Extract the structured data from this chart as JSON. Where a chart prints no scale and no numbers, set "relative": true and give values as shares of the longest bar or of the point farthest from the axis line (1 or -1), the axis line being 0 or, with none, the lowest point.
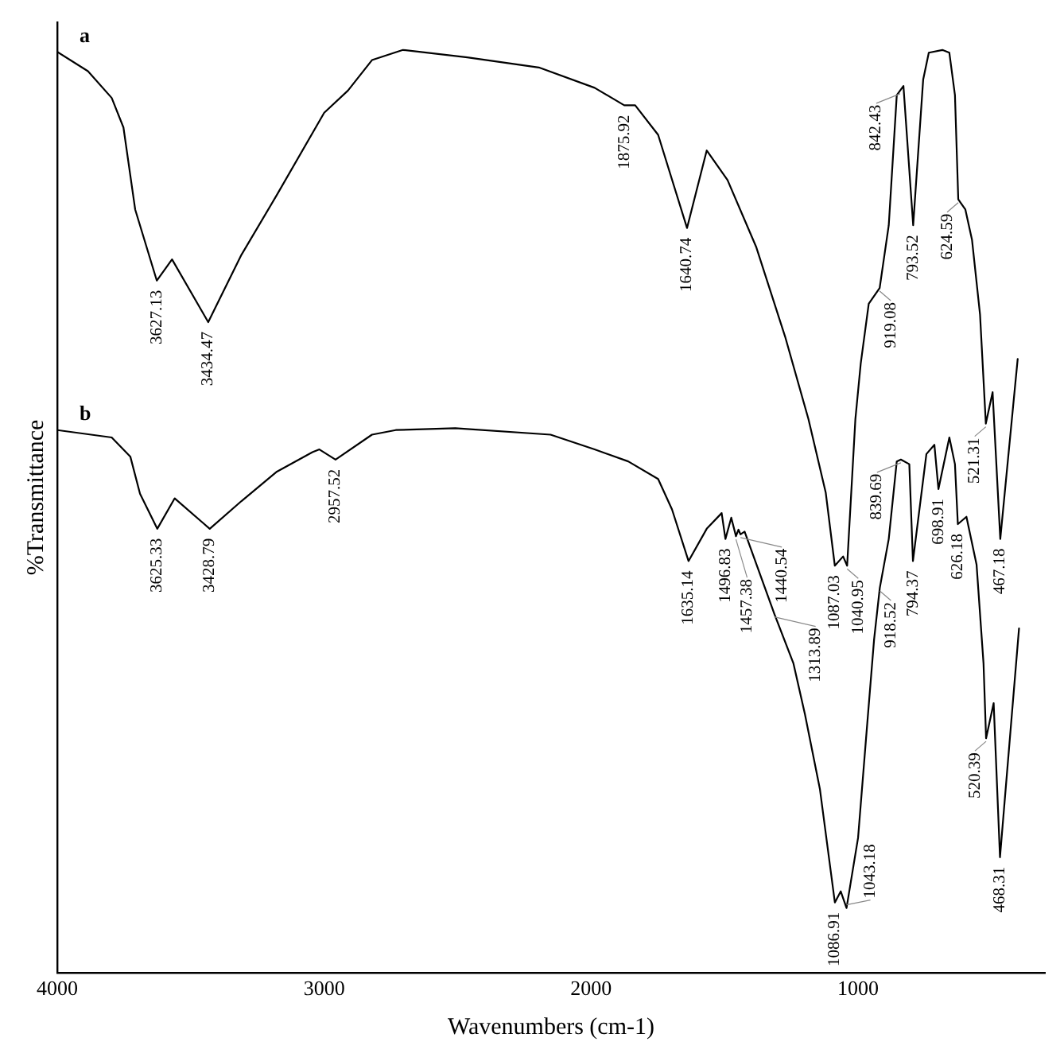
{
  "chart_data": {
    "type": "line",
    "xlabel": "Wavenumbers (cm-1)",
    "ylabel": "%Transmittance",
    "relative": true,
    "xlim": [
      4000,
      300
    ],
    "xticks": [
      4000,
      3000,
      2000,
      1000
    ],
    "grid": false,
    "legend": false,
    "marker": "none",
    "line_style": "solid",
    "series": [
      {
        "name": "a",
        "color": "#000000",
        "x": [
          4000,
          3885,
          3796,
          3752,
          3708,
          3627.13,
          3570,
          3434.47,
          3310,
          3177,
          3000,
          2911,
          2821,
          2705,
          2464,
          2196,
          1987,
          1875.92,
          1835,
          1749,
          1640.74,
          1567,
          1489,
          1381,
          1273,
          1186,
          1121,
          1087.03,
          1056,
          1040.95,
          1010,
          990,
          960,
          919.08,
          885,
          855,
          842.43,
          830,
          793.52,
          756,
          735,
          684,
          658,
          637,
          624.59,
          598,
          573,
          543,
          521.31,
          496,
          467.18,
          402
        ],
        "values": [
          0.998,
          0.977,
          0.948,
          0.916,
          0.827,
          0.75,
          0.773,
          0.705,
          0.778,
          0.843,
          0.932,
          0.956,
          0.989,
          1.0,
          0.992,
          0.981,
          0.959,
          0.94,
          0.94,
          0.908,
          0.807,
          0.891,
          0.859,
          0.786,
          0.689,
          0.6,
          0.52,
          0.441,
          0.451,
          0.441,
          0.6,
          0.66,
          0.725,
          0.742,
          0.81,
          0.951,
          0.956,
          0.961,
          0.81,
          0.968,
          0.997,
          1.0,
          0.997,
          0.951,
          0.838,
          0.827,
          0.794,
          0.713,
          0.595,
          0.629,
          0.47,
          0.665
        ]
      },
      {
        "name": "b",
        "color": "#000000",
        "x": [
          4000,
          3796,
          3726,
          3690,
          3625.33,
          3560,
          3428.79,
          3310,
          3177,
          3044,
          3018,
          2957.52,
          2821,
          2732,
          2509,
          2152,
          1987,
          1861,
          1749,
          1697,
          1635.14,
          1567,
          1511,
          1496.83,
          1475,
          1457.38,
          1448,
          1440.54,
          1425,
          1313.89,
          1242,
          1199,
          1143,
          1086.91,
          1065,
          1043.18,
          1000,
          970,
          940,
          918.52,
          885,
          855,
          839.69,
          808,
          794.37,
          744,
          714,
          698.91,
          658,
          637,
          626.18,
          594,
          556,
          530,
          520.39,
          492,
          468.31,
          397
        ],
        "values": [
          0.588,
          0.58,
          0.559,
          0.519,
          0.481,
          0.514,
          0.481,
          0.511,
          0.543,
          0.564,
          0.567,
          0.556,
          0.583,
          0.588,
          0.59,
          0.583,
          0.567,
          0.554,
          0.535,
          0.502,
          0.446,
          0.481,
          0.498,
          0.47,
          0.493,
          0.473,
          0.48,
          0.475,
          0.478,
          0.389,
          0.335,
          0.28,
          0.199,
          0.076,
          0.088,
          0.07,
          0.146,
          0.254,
          0.361,
          0.417,
          0.47,
          0.554,
          0.556,
          0.551,
          0.446,
          0.562,
          0.572,
          0.524,
          0.58,
          0.551,
          0.486,
          0.494,
          0.442,
          0.335,
          0.254,
          0.292,
          0.125,
          0.373
        ]
      }
    ],
    "annotations": [
      {
        "text": "3627.13",
        "x": 3627.13,
        "y": 0.75
      },
      {
        "text": "3434.47",
        "x": 3434.47,
        "y": 0.705
      },
      {
        "text": "1875.92",
        "x": 1875.92,
        "y": 0.94
      },
      {
        "text": "1640.74",
        "x": 1640.74,
        "y": 0.807
      },
      {
        "text": "1087.03",
        "x": 1087.03,
        "y": 0.441
      },
      {
        "text": "1040.95",
        "x": 1040.95,
        "y": 0.441
      },
      {
        "text": "919.08",
        "x": 919.08,
        "y": 0.742
      },
      {
        "text": "842.43",
        "x": 842.43,
        "y": 0.956
      },
      {
        "text": "793.52",
        "x": 793.52,
        "y": 0.81
      },
      {
        "text": "624.59",
        "x": 624.59,
        "y": 0.838
      },
      {
        "text": "521.31",
        "x": 521.31,
        "y": 0.595
      },
      {
        "text": "467.18",
        "x": 467.18,
        "y": 0.47
      },
      {
        "text": "3625.33",
        "x": 3625.33,
        "y": 0.481
      },
      {
        "text": "3428.79",
        "x": 3428.79,
        "y": 0.481
      },
      {
        "text": "2957.52",
        "x": 2957.52,
        "y": 0.556
      },
      {
        "text": "1635.14",
        "x": 1635.14,
        "y": 0.446
      },
      {
        "text": "1496.83",
        "x": 1496.83,
        "y": 0.47
      },
      {
        "text": "1457.38",
        "x": 1457.38,
        "y": 0.473
      },
      {
        "text": "1440.54",
        "x": 1440.54,
        "y": 0.475
      },
      {
        "text": "1313.89",
        "x": 1313.89,
        "y": 0.389
      },
      {
        "text": "1086.91",
        "x": 1086.91,
        "y": 0.076
      },
      {
        "text": "1043.18",
        "x": 1043.18,
        "y": 0.07
      },
      {
        "text": "918.52",
        "x": 918.52,
        "y": 0.417
      },
      {
        "text": "839.69",
        "x": 839.69,
        "y": 0.556
      },
      {
        "text": "794.37",
        "x": 794.37,
        "y": 0.446
      },
      {
        "text": "698.91",
        "x": 698.91,
        "y": 0.524
      },
      {
        "text": "626.18",
        "x": 626.18,
        "y": 0.486
      },
      {
        "text": "520.39",
        "x": 520.39,
        "y": 0.254
      },
      {
        "text": "468.31",
        "x": 468.31,
        "y": 0.125
      }
    ]
  }
}
